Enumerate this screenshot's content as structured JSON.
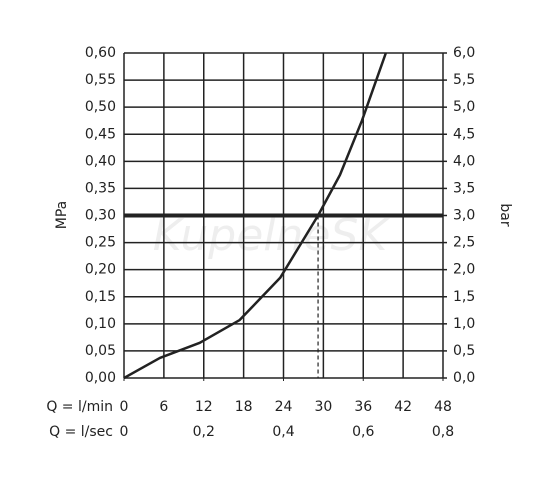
{
  "chart_data": {
    "type": "line",
    "x": [
      0,
      5.4,
      11.4,
      17.4,
      23.5,
      29.2,
      32.5,
      35.8,
      39.4
    ],
    "series": [
      {
        "name": "MPa",
        "color": "#222222",
        "values": [
          0,
          0.037,
          0.065,
          0.107,
          0.185,
          0.3,
          0.375,
          0.475,
          0.6
        ]
      }
    ],
    "xlim": [
      0,
      48
    ],
    "xticks": [
      0,
      6,
      12,
      18,
      24,
      30,
      36,
      42,
      48
    ],
    "xlabel": "Q = l/min",
    "x2lim": [
      0,
      0.8
    ],
    "x2ticks": [
      0,
      {
        "value": 0.2,
        "label": "0,2"
      },
      {
        "value": 0.4,
        "label": "0,4"
      },
      {
        "value": 0.6,
        "label": "0,6"
      },
      {
        "value": 0.8,
        "label": "0,8"
      }
    ],
    "x2label": "Q = l/sec",
    "ylim": [
      0,
      0.6
    ],
    "ylabel": "MPa",
    "yticks": [
      {
        "value": 0,
        "label": "0,00"
      },
      {
        "value": 0.05,
        "label": "0,05"
      },
      {
        "value": 0.1,
        "label": "0,10"
      },
      {
        "value": 0.15,
        "label": "0,15"
      },
      {
        "value": 0.2,
        "label": "0,20"
      },
      {
        "value": 0.25,
        "label": "0,25"
      },
      {
        "value": 0.3,
        "label": "0,30"
      },
      {
        "value": 0.35,
        "label": "0,35"
      },
      {
        "value": 0.4,
        "label": "0,40"
      },
      {
        "value": 0.45,
        "label": "0,45"
      },
      {
        "value": 0.5,
        "label": "0,50"
      },
      {
        "value": 0.55,
        "label": "0,55"
      },
      {
        "value": 0.6,
        "label": "0,60"
      }
    ],
    "y2lim": [
      0,
      6
    ],
    "y2label": "bar",
    "y2ticks": [
      {
        "value": 0,
        "label": "0,0"
      },
      {
        "value": 0.5,
        "label": "0,5"
      },
      {
        "value": 1,
        "label": "1,0"
      },
      {
        "value": 1.5,
        "label": "1,5"
      },
      {
        "value": 2,
        "label": "2,0"
      },
      {
        "value": 2.5,
        "label": "2,5"
      },
      {
        "value": 3,
        "label": "3,0"
      },
      {
        "value": 3.5,
        "label": "3,5"
      },
      {
        "value": 4,
        "label": "4,0"
      },
      {
        "value": 4.5,
        "label": "4,5"
      },
      {
        "value": 5,
        "label": "5,0"
      },
      {
        "value": 5.5,
        "label": "5,5"
      },
      {
        "value": 6,
        "label": "6,0"
      }
    ],
    "reference_y": 0.3,
    "reference_x": 29.2,
    "grid": true,
    "watermark": "KupelneSK"
  }
}
